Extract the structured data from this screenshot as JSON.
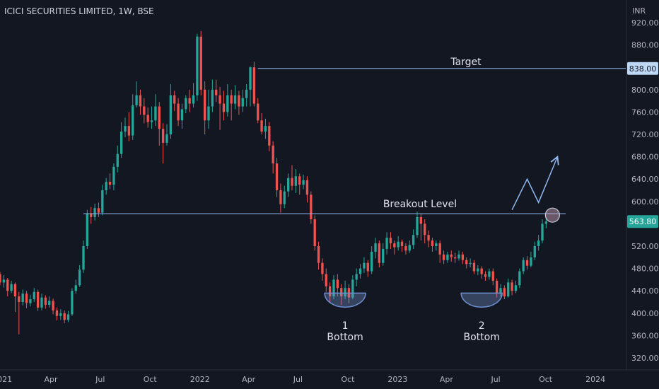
{
  "header": {
    "title": "ICICI SECURITIES LIMITED, 1W, BSE"
  },
  "chart_data": {
    "type": "candlestick",
    "currency_label": "INR",
    "y_ticks": [
      920,
      880,
      840,
      800,
      760,
      720,
      680,
      640,
      600,
      560,
      520,
      480,
      440,
      400,
      360,
      320
    ],
    "y_tick_labels": [
      "920.00",
      "880.00",
      "800.00",
      "760.00",
      "720.00",
      "680.00",
      "640.00",
      "600.00",
      "520.00",
      "480.00",
      "440.00",
      "400.00",
      "360.00",
      "320.00"
    ],
    "ylim": [
      305,
      940
    ],
    "x_ticks": [
      "2021",
      "Apr",
      "Jul",
      "Oct",
      "2022",
      "Apr",
      "Jul",
      "Oct",
      "2023",
      "Apr",
      "Jul",
      "Oct",
      "2024"
    ],
    "x_range": [
      "2020-12-28",
      "2024-02-26"
    ],
    "x_tick_dates": [
      "2021-01-01",
      "2021-04-01",
      "2021-07-01",
      "2021-10-01",
      "2022-01-01",
      "2022-04-01",
      "2022-07-01",
      "2022-10-01",
      "2023-01-01",
      "2023-04-01",
      "2023-07-01",
      "2023-10-01",
      "2024-01-01"
    ],
    "first_candle_date": "2020-12-28",
    "candles": [
      [
        470,
        455,
        474,
        450
      ],
      [
        455,
        460,
        468,
        446
      ],
      [
        460,
        440,
        463,
        430
      ],
      [
        440,
        452,
        458,
        436
      ],
      [
        452,
        430,
        455,
        402
      ],
      [
        430,
        420,
        438,
        362
      ],
      [
        420,
        435,
        442,
        414
      ],
      [
        435,
        418,
        440,
        409
      ],
      [
        418,
        425,
        433,
        412
      ],
      [
        425,
        438,
        445,
        420
      ],
      [
        438,
        410,
        442,
        404
      ],
      [
        410,
        428,
        435,
        405
      ],
      [
        428,
        415,
        432,
        408
      ],
      [
        415,
        422,
        430,
        410
      ],
      [
        422,
        405,
        426,
        398
      ],
      [
        405,
        395,
        410,
        387
      ],
      [
        395,
        400,
        407,
        388
      ],
      [
        400,
        388,
        405,
        382
      ],
      [
        388,
        398,
        404,
        384
      ],
      [
        398,
        440,
        445,
        395
      ],
      [
        440,
        450,
        460,
        435
      ],
      [
        450,
        478,
        486,
        447
      ],
      [
        478,
        520,
        530,
        472
      ],
      [
        520,
        578,
        585,
        515
      ],
      [
        578,
        572,
        590,
        560
      ],
      [
        572,
        588,
        596,
        566
      ],
      [
        588,
        580,
        598,
        572
      ],
      [
        580,
        620,
        630,
        575
      ],
      [
        620,
        635,
        642,
        612
      ],
      [
        635,
        630,
        650,
        622
      ],
      [
        630,
        662,
        668,
        620
      ],
      [
        662,
        685,
        700,
        652
      ],
      [
        685,
        725,
        742,
        678
      ],
      [
        725,
        735,
        750,
        715
      ],
      [
        735,
        718,
        760,
        708
      ],
      [
        718,
        772,
        792,
        710
      ],
      [
        772,
        790,
        815,
        768
      ],
      [
        790,
        770,
        800,
        755
      ],
      [
        770,
        755,
        785,
        740
      ],
      [
        755,
        742,
        768,
        732
      ],
      [
        742,
        745,
        770,
        730
      ],
      [
        745,
        770,
        792,
        735
      ],
      [
        770,
        730,
        778,
        700
      ],
      [
        730,
        705,
        740,
        668
      ],
      [
        705,
        720,
        738,
        700
      ],
      [
        720,
        790,
        810,
        712
      ],
      [
        790,
        775,
        798,
        762
      ],
      [
        775,
        745,
        785,
        735
      ],
      [
        745,
        765,
        775,
        730
      ],
      [
        765,
        785,
        790,
        758
      ],
      [
        785,
        775,
        800,
        760
      ],
      [
        775,
        790,
        812,
        768
      ],
      [
        790,
        895,
        900,
        780
      ],
      [
        895,
        800,
        905,
        790
      ],
      [
        800,
        745,
        815,
        720
      ],
      [
        745,
        770,
        800,
        730
      ],
      [
        770,
        800,
        818,
        760
      ],
      [
        800,
        790,
        818,
        778
      ],
      [
        790,
        775,
        805,
        728
      ],
      [
        775,
        760,
        798,
        745
      ],
      [
        760,
        790,
        810,
        752
      ],
      [
        790,
        775,
        800,
        745
      ],
      [
        775,
        790,
        808,
        765
      ],
      [
        790,
        770,
        798,
        755
      ],
      [
        770,
        785,
        800,
        760
      ],
      [
        785,
        800,
        810,
        770
      ],
      [
        800,
        840,
        842,
        770
      ],
      [
        840,
        775,
        850,
        770
      ],
      [
        775,
        745,
        785,
        740
      ],
      [
        745,
        725,
        758,
        720
      ],
      [
        725,
        735,
        748,
        712
      ],
      [
        735,
        700,
        742,
        690
      ],
      [
        700,
        668,
        708,
        650
      ],
      [
        668,
        620,
        678,
        608
      ],
      [
        620,
        595,
        632,
        580
      ],
      [
        595,
        618,
        628,
        588
      ],
      [
        618,
        642,
        650,
        608
      ],
      [
        642,
        628,
        665,
        620
      ],
      [
        628,
        645,
        658,
        615
      ],
      [
        645,
        630,
        650,
        612
      ],
      [
        630,
        638,
        648,
        622
      ],
      [
        638,
        612,
        645,
        598
      ],
      [
        612,
        568,
        618,
        560
      ],
      [
        568,
        520,
        575,
        512
      ],
      [
        520,
        490,
        528,
        478
      ],
      [
        490,
        470,
        498,
        458
      ],
      [
        470,
        448,
        480,
        438
      ],
      [
        448,
        430,
        455,
        420
      ],
      [
        430,
        460,
        468,
        425
      ],
      [
        460,
        445,
        470,
        430
      ],
      [
        445,
        430,
        452,
        415
      ],
      [
        430,
        445,
        458,
        425
      ],
      [
        445,
        428,
        452,
        418
      ],
      [
        428,
        460,
        468,
        425
      ],
      [
        460,
        470,
        480,
        448
      ],
      [
        470,
        480,
        488,
        462
      ],
      [
        480,
        490,
        500,
        472
      ],
      [
        490,
        475,
        495,
        465
      ],
      [
        475,
        510,
        520,
        470
      ],
      [
        510,
        525,
        535,
        498
      ],
      [
        525,
        490,
        530,
        482
      ],
      [
        490,
        515,
        525,
        485
      ],
      [
        515,
        535,
        545,
        505
      ],
      [
        535,
        525,
        545,
        515
      ],
      [
        525,
        518,
        530,
        505
      ],
      [
        518,
        528,
        538,
        512
      ],
      [
        528,
        520,
        532,
        510
      ],
      [
        520,
        512,
        525,
        505
      ],
      [
        512,
        522,
        530,
        508
      ],
      [
        522,
        540,
        550,
        515
      ],
      [
        540,
        572,
        582,
        535
      ],
      [
        572,
        560,
        578,
        530
      ],
      [
        560,
        540,
        568,
        525
      ],
      [
        540,
        530,
        548,
        518
      ],
      [
        530,
        520,
        535,
        510
      ],
      [
        520,
        525,
        530,
        512
      ],
      [
        525,
        505,
        530,
        490
      ],
      [
        505,
        495,
        512,
        488
      ],
      [
        495,
        505,
        510,
        490
      ],
      [
        505,
        500,
        512,
        492
      ],
      [
        500,
        498,
        508,
        490
      ],
      [
        498,
        505,
        512,
        494
      ],
      [
        505,
        495,
        510,
        488
      ],
      [
        495,
        488,
        500,
        480
      ],
      [
        488,
        490,
        498,
        482
      ],
      [
        490,
        475,
        495,
        470
      ],
      [
        475,
        480,
        486,
        468
      ],
      [
        480,
        470,
        484,
        462
      ],
      [
        470,
        465,
        475,
        458
      ],
      [
        465,
        475,
        480,
        460
      ],
      [
        475,
        458,
        480,
        450
      ],
      [
        458,
        435,
        462,
        428
      ],
      [
        435,
        445,
        452,
        430
      ],
      [
        445,
        430,
        450,
        425
      ],
      [
        430,
        455,
        462,
        428
      ],
      [
        455,
        440,
        460,
        432
      ],
      [
        440,
        450,
        458,
        436
      ],
      [
        450,
        475,
        480,
        445
      ],
      [
        475,
        495,
        500,
        470
      ],
      [
        495,
        485,
        502,
        478
      ],
      [
        485,
        500,
        510,
        482
      ],
      [
        500,
        520,
        528,
        495
      ],
      [
        520,
        530,
        540,
        512
      ],
      [
        530,
        560,
        568,
        525
      ],
      [
        560,
        564,
        572,
        552
      ]
    ],
    "annotations": {
      "target_label": "Target",
      "target_value": 838,
      "target_price_label": "838.00",
      "breakout_label": "Breakout Level",
      "breakout_value": 578,
      "current_price_label": "563.80",
      "bottom1_number": "1",
      "bottom1_text": "Bottom",
      "bottom2_number": "2",
      "bottom2_text": "Bottom",
      "target_line_start_candle": 68,
      "breakout_line_start_candle": 22,
      "bottom1_candle": 91,
      "bottom2_candle": 127,
      "projection_path": [
        [
          135,
          585
        ],
        [
          139,
          640
        ],
        [
          142,
          598
        ],
        [
          147,
          680
        ]
      ]
    },
    "colors": {
      "up": "#26a69a",
      "down": "#ef5350",
      "line": "#8fb8f0",
      "price_box": "#26a69a",
      "target_box": "#bdd7f5"
    }
  }
}
